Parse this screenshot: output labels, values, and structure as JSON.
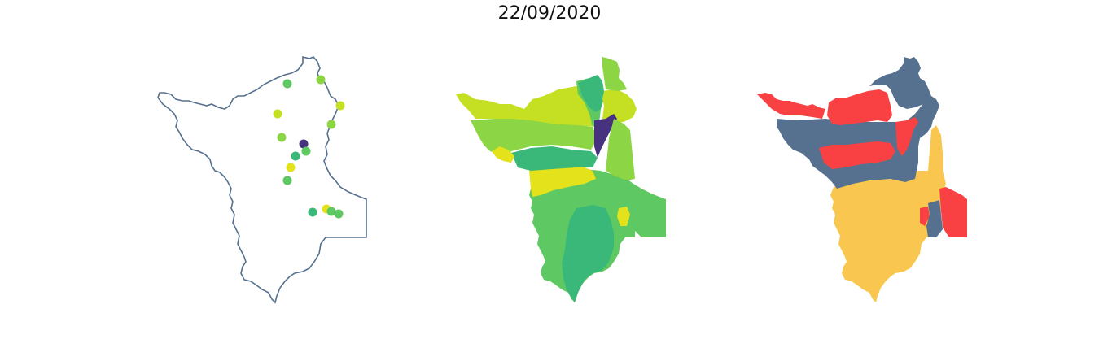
{
  "title": "22/09/2020",
  "colors": {
    "outline": "#56708e",
    "purple": "#46327e",
    "teal": "#3ab879",
    "green": "#5ec962",
    "lightgreen": "#8cd646",
    "yellowgreen": "#c5df22",
    "yellow": "#e4e21a",
    "slate": "#56718f",
    "red": "#f94144",
    "amber": "#f9c74f"
  },
  "panels": [
    {
      "name": "station-points-map"
    },
    {
      "name": "municipality-choropleth-map"
    },
    {
      "name": "category-map"
    }
  ]
}
